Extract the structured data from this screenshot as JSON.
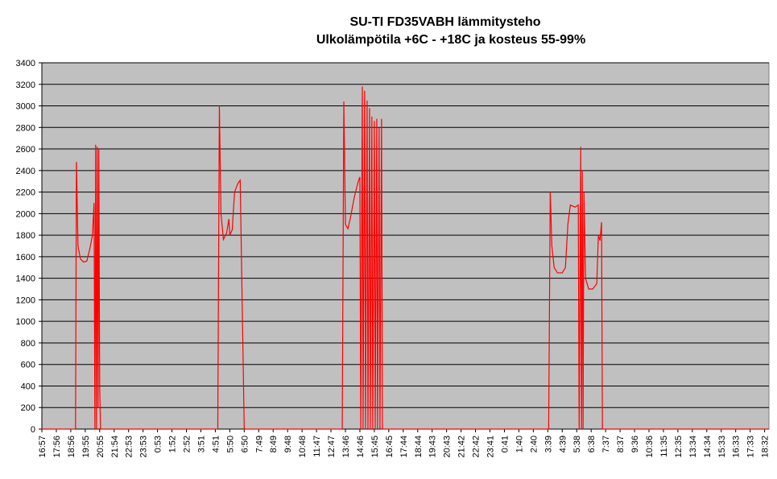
{
  "chart_data": {
    "type": "line",
    "title": "SU-TI FD35VABH lämmitysteho",
    "subtitle": "Ulkolämpötila  +6C - +18C ja kosteus 55-99%",
    "x": [
      0,
      2.33,
      2.39,
      2.5,
      2.67,
      2.89,
      3.11,
      3.33,
      3.5,
      3.61,
      3.67,
      3.72,
      3.78,
      3.83,
      3.89,
      3.94,
      4.0,
      4.06,
      12.17,
      12.28,
      12.39,
      12.56,
      12.78,
      12.94,
      13.0,
      13.17,
      13.33,
      13.56,
      13.72,
      14.0,
      20.78,
      20.89,
      21.0,
      21.17,
      21.33,
      21.61,
      21.89,
      22.0,
      22.06,
      22.17,
      22.22,
      22.33,
      22.39,
      22.5,
      22.56,
      22.67,
      22.72,
      22.83,
      22.89,
      23.0,
      23.06,
      23.17,
      23.22,
      23.33,
      23.39,
      23.5,
      23.56,
      35.06,
      35.17,
      35.28,
      35.44,
      35.67,
      36.0,
      36.22,
      36.39,
      36.56,
      36.89,
      37.11,
      37.17,
      37.28,
      37.33,
      37.39,
      37.44,
      37.5,
      37.61,
      37.83,
      38.11,
      38.39,
      38.5,
      38.61,
      38.72,
      38.78,
      50.3
    ],
    "series": [
      {
        "name": "lämmitysteho",
        "color": "#ff0000",
        "values": [
          0,
          0,
          2480,
          1700,
          1580,
          1550,
          1560,
          1680,
          1800,
          2100,
          0,
          2640,
          0,
          2620,
          200,
          2600,
          400,
          0,
          0,
          3000,
          2000,
          1760,
          1820,
          1950,
          1800,
          1850,
          2200,
          2280,
          2310,
          0,
          0,
          3040,
          1900,
          1860,
          1950,
          2150,
          2300,
          2340,
          0,
          3180,
          0,
          3140,
          0,
          3050,
          0,
          2980,
          0,
          2900,
          0,
          2860,
          0,
          2880,
          0,
          2800,
          0,
          2880,
          0,
          0,
          2200,
          1700,
          1500,
          1450,
          1450,
          1500,
          1900,
          2080,
          2060,
          2080,
          0,
          2620,
          0,
          2400,
          0,
          2200,
          1400,
          1300,
          1300,
          1350,
          1800,
          1750,
          1920,
          0,
          0
        ]
      }
    ],
    "xlim": [
      0,
      50.3
    ],
    "xticks": [
      {
        "value": 0,
        "label": "16:57"
      },
      {
        "value": 1,
        "label": "17:56"
      },
      {
        "value": 2,
        "label": "18:56"
      },
      {
        "value": 3,
        "label": "19:55"
      },
      {
        "value": 4,
        "label": "20:55"
      },
      {
        "value": 5,
        "label": "21:54"
      },
      {
        "value": 6,
        "label": "22:53"
      },
      {
        "value": 7,
        "label": "23:53"
      },
      {
        "value": 8,
        "label": "0:53"
      },
      {
        "value": 9,
        "label": "1:52"
      },
      {
        "value": 10,
        "label": "2:52"
      },
      {
        "value": 11,
        "label": "3:51"
      },
      {
        "value": 12,
        "label": "4:51"
      },
      {
        "value": 13,
        "label": "5:50"
      },
      {
        "value": 14,
        "label": "6:50"
      },
      {
        "value": 15,
        "label": "7:49"
      },
      {
        "value": 16,
        "label": "8:49"
      },
      {
        "value": 17,
        "label": "9:48"
      },
      {
        "value": 18,
        "label": "10:48"
      },
      {
        "value": 19,
        "label": "11:47"
      },
      {
        "value": 20,
        "label": "12:47"
      },
      {
        "value": 21,
        "label": "13:46"
      },
      {
        "value": 22,
        "label": "14:46"
      },
      {
        "value": 23,
        "label": "15:45"
      },
      {
        "value": 24,
        "label": "16:45"
      },
      {
        "value": 25,
        "label": "17:44"
      },
      {
        "value": 26,
        "label": "18:44"
      },
      {
        "value": 27,
        "label": "19:43"
      },
      {
        "value": 28,
        "label": "20:43"
      },
      {
        "value": 29,
        "label": "21:42"
      },
      {
        "value": 30,
        "label": "22:42"
      },
      {
        "value": 31,
        "label": "23:41"
      },
      {
        "value": 32,
        "label": "0:41"
      },
      {
        "value": 33,
        "label": "1:40"
      },
      {
        "value": 34,
        "label": "2:40"
      },
      {
        "value": 35,
        "label": "3:39"
      },
      {
        "value": 36,
        "label": "4:39"
      },
      {
        "value": 37,
        "label": "5:38"
      },
      {
        "value": 38,
        "label": "6:38"
      },
      {
        "value": 39,
        "label": "7:37"
      },
      {
        "value": 40,
        "label": "8:37"
      },
      {
        "value": 41,
        "label": "9:36"
      },
      {
        "value": 42,
        "label": "10:36"
      },
      {
        "value": 43,
        "label": "11:35"
      },
      {
        "value": 44,
        "label": "12:35"
      },
      {
        "value": 45,
        "label": "13:34"
      },
      {
        "value": 46,
        "label": "14:34"
      },
      {
        "value": 47,
        "label": "15:33"
      },
      {
        "value": 48,
        "label": "16:33"
      },
      {
        "value": 49,
        "label": "17:33"
      },
      {
        "value": 50,
        "label": "18:32"
      }
    ],
    "ylim": [
      0,
      3400
    ],
    "yticks": [
      0,
      200,
      400,
      600,
      800,
      1000,
      1200,
      1400,
      1600,
      1800,
      2000,
      2200,
      2400,
      2600,
      2800,
      3000,
      3200,
      3400
    ],
    "grid": true,
    "background": "#c0c0c0"
  }
}
